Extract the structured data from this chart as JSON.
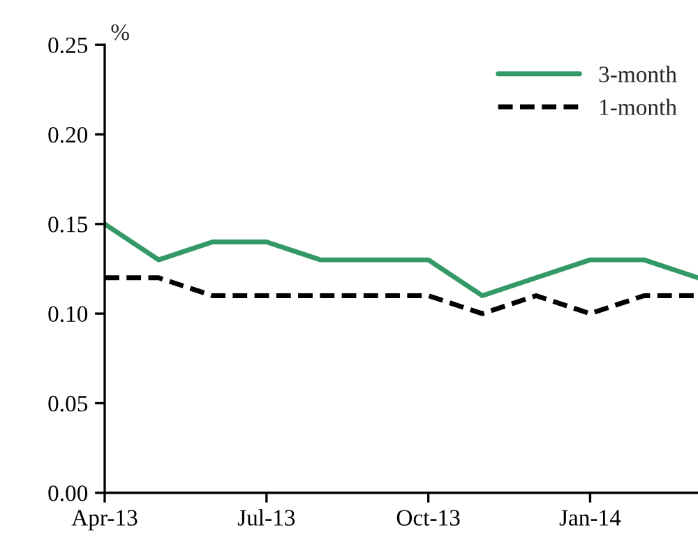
{
  "chart_data": {
    "type": "line",
    "ylabel": "%",
    "categories": [
      "Apr-13",
      null,
      null,
      "Jul-13",
      null,
      null,
      "Oct-13",
      null,
      null,
      "Jan-14",
      null,
      null
    ],
    "series": [
      {
        "name": "3-month",
        "color": "#339966",
        "line_style": "solid",
        "values": [
          0.15,
          0.13,
          0.14,
          0.14,
          0.13,
          0.13,
          0.13,
          0.11,
          0.12,
          0.13,
          0.13,
          0.12
        ]
      },
      {
        "name": "1-month",
        "color": "#000000",
        "line_style": "dashed",
        "values": [
          0.12,
          0.12,
          0.11,
          0.11,
          0.11,
          0.11,
          0.11,
          0.1,
          0.11,
          0.1,
          0.11,
          0.11
        ]
      }
    ],
    "ylim": [
      0,
      0.25
    ],
    "yticks": [
      {
        "value": 0,
        "label": "0.00"
      },
      {
        "value": 0.05,
        "label": "0.05"
      },
      {
        "value": 0.1,
        "label": "0.10"
      },
      {
        "value": 0.15,
        "label": "0.15"
      },
      {
        "value": 0.2,
        "label": "0.20"
      },
      {
        "value": 0.25,
        "label": "0.25"
      }
    ],
    "grid": false,
    "legend": "top right",
    "marker": "none"
  }
}
